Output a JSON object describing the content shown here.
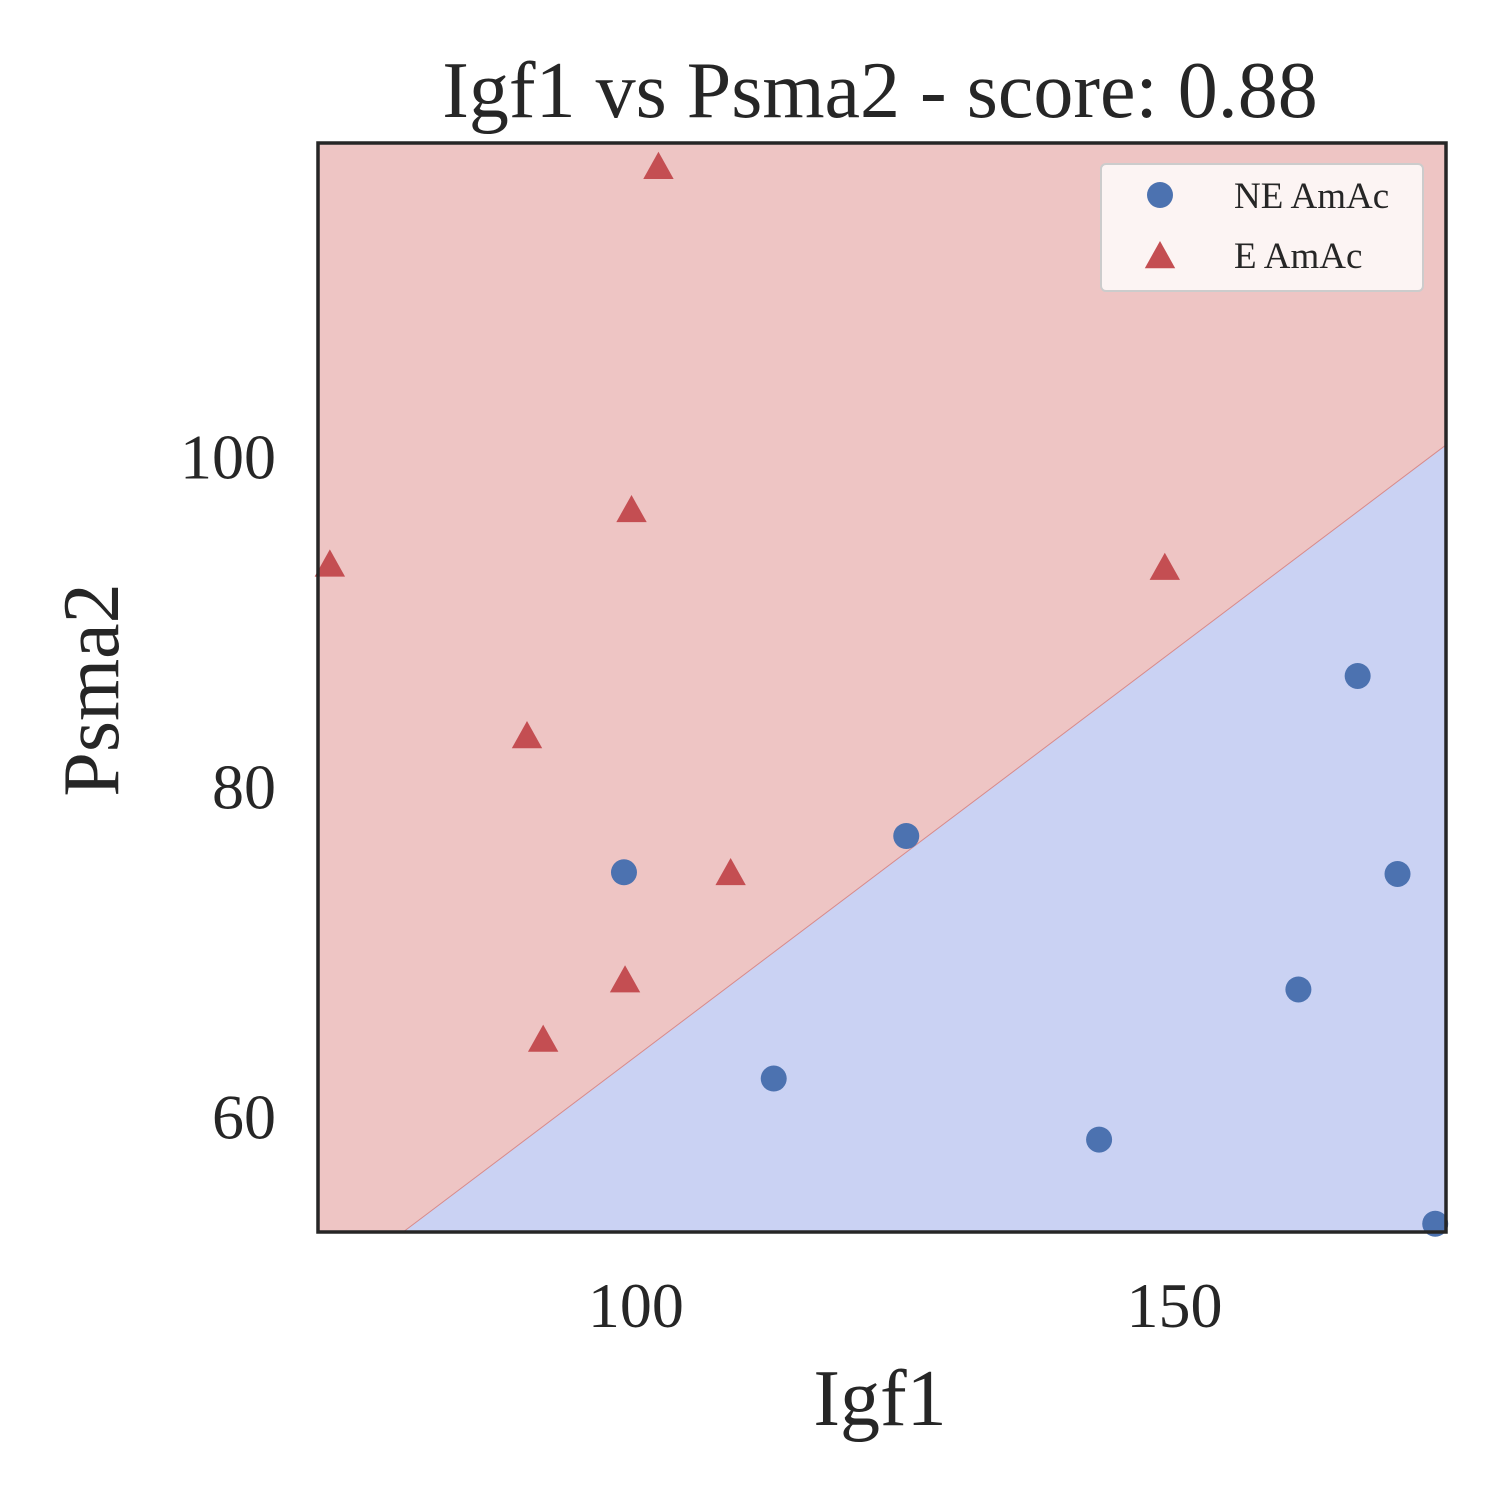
{
  "chart_data": {
    "type": "scatter",
    "title": "Igf1 vs Psma2 - score: 0.88",
    "xlabel": "Igf1",
    "ylabel": "Psma2",
    "xlim": [
      70.5,
      175.2
    ],
    "ylim": [
      53.0,
      119.0
    ],
    "xticks": [
      100,
      150
    ],
    "yticks": [
      60,
      80,
      100
    ],
    "grid": false,
    "legend": {
      "placement": "top-right"
    },
    "decision_boundary": {
      "points": [
        [
          78.4,
          53.0
        ],
        [
          175.2,
          100.7
        ]
      ],
      "regions": [
        {
          "class": "E AmAc",
          "side": "upper-left",
          "color": "#eec5c4"
        },
        {
          "class": "NE AmAc",
          "side": "lower-right",
          "color": "#cad2f3"
        }
      ]
    },
    "series": [
      {
        "name": "NE AmAc",
        "marker": "circle",
        "color": "#4c72b0",
        "points": [
          [
            98.9,
            74.8
          ],
          [
            112.8,
            62.3
          ],
          [
            125.1,
            77.0
          ],
          [
            143.0,
            58.6
          ],
          [
            161.5,
            67.7
          ],
          [
            167.0,
            86.7
          ],
          [
            170.7,
            74.7
          ],
          [
            174.2,
            53.5
          ]
        ]
      },
      {
        "name": "E AmAc",
        "marker": "triangle",
        "color": "#c44e52",
        "points": [
          [
            71.6,
            93.4
          ],
          [
            89.9,
            83.0
          ],
          [
            91.4,
            64.6
          ],
          [
            99.0,
            68.2
          ],
          [
            99.6,
            96.7
          ],
          [
            102.1,
            117.5
          ],
          [
            108.8,
            74.7
          ],
          [
            149.1,
            93.2
          ]
        ]
      }
    ]
  }
}
